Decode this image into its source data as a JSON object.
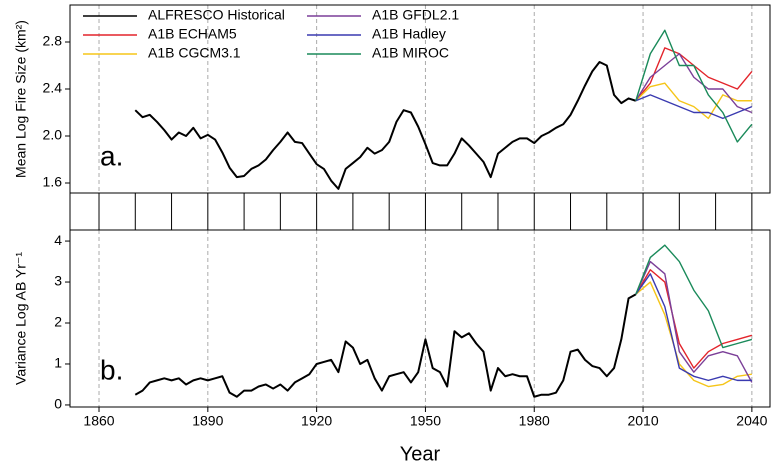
{
  "chart_data": [
    {
      "type": "line",
      "ylabel": "Mean Log Fire Size (km²)",
      "annotation": "a.",
      "xlim": [
        1852,
        2045
      ],
      "ylim": [
        1.515,
        3.115
      ],
      "xticks": [
        1860,
        1890,
        1920,
        1950,
        1980,
        2010,
        2040
      ],
      "xminorticks": [
        1860,
        1870,
        1880,
        1890,
        1900,
        1910,
        1920,
        1930,
        1940,
        1950,
        1960,
        1970,
        1980,
        1990,
        2000,
        2010,
        2020,
        2030,
        2040
      ],
      "yticks": [
        1.6,
        {
          "value": 2,
          "label": "2.0"
        },
        2.4,
        2.8
      ],
      "grid": true,
      "legend": "upper-left",
      "series": [
        {
          "name": "ALFRESCO Historical",
          "color": "#000000",
          "x": [
            1870,
            1872,
            1874,
            1876,
            1878,
            1880,
            1882,
            1884,
            1886,
            1888,
            1890,
            1892,
            1894,
            1896,
            1898,
            1900,
            1902,
            1904,
            1906,
            1908,
            1910,
            1912,
            1914,
            1916,
            1918,
            1920,
            1922,
            1924,
            1926,
            1928,
            1930,
            1932,
            1934,
            1936,
            1938,
            1940,
            1942,
            1944,
            1946,
            1948,
            1950,
            1952,
            1954,
            1956,
            1958,
            1960,
            1962,
            1964,
            1966,
            1968,
            1970,
            1972,
            1974,
            1976,
            1978,
            1980,
            1982,
            1984,
            1986,
            1988,
            1990,
            1992,
            1994,
            1996,
            1998,
            2000,
            2002,
            2004,
            2006,
            2008
          ],
          "values": [
            2.22,
            2.16,
            2.18,
            2.12,
            2.05,
            1.97,
            2.03,
            2.0,
            2.07,
            1.98,
            2.01,
            1.97,
            1.86,
            1.73,
            1.65,
            1.66,
            1.72,
            1.75,
            1.8,
            1.88,
            1.95,
            2.03,
            1.95,
            1.94,
            1.85,
            1.76,
            1.72,
            1.62,
            1.55,
            1.72,
            1.77,
            1.82,
            1.9,
            1.85,
            1.88,
            1.95,
            2.12,
            2.22,
            2.2,
            2.08,
            1.93,
            1.77,
            1.75,
            1.75,
            1.85,
            1.98,
            1.92,
            1.85,
            1.78,
            1.65,
            1.85,
            1.9,
            1.95,
            1.98,
            1.98,
            1.94,
            2.0,
            2.03,
            2.07,
            2.1,
            2.18,
            2.3,
            2.43,
            2.55,
            2.63,
            2.6,
            2.35,
            2.28,
            2.32,
            2.3
          ]
        },
        {
          "name": "A1B ECHAM5",
          "color": "#e3242b",
          "x": [
            2008,
            2012,
            2016,
            2020,
            2024,
            2028,
            2032,
            2036,
            2040
          ],
          "values": [
            2.3,
            2.45,
            2.75,
            2.7,
            2.6,
            2.5,
            2.45,
            2.4,
            2.55
          ]
        },
        {
          "name": "A1B CGCM3.1",
          "color": "#f5c518",
          "x": [
            2008,
            2012,
            2016,
            2020,
            2024,
            2028,
            2032,
            2036,
            2040
          ],
          "values": [
            2.3,
            2.42,
            2.45,
            2.3,
            2.25,
            2.15,
            2.35,
            2.3,
            2.3
          ]
        },
        {
          "name": "A1B GFDL2.1",
          "color": "#7b3f98",
          "x": [
            2008,
            2012,
            2016,
            2020,
            2024,
            2028,
            2032,
            2036,
            2040
          ],
          "values": [
            2.3,
            2.5,
            2.6,
            2.7,
            2.5,
            2.4,
            2.4,
            2.25,
            2.2
          ]
        },
        {
          "name": "A1B Hadley",
          "color": "#3a3ab0",
          "x": [
            2008,
            2012,
            2016,
            2020,
            2024,
            2028,
            2032,
            2036,
            2040
          ],
          "values": [
            2.3,
            2.35,
            2.3,
            2.25,
            2.2,
            2.2,
            2.15,
            2.2,
            2.25
          ]
        },
        {
          "name": "A1B MIROC",
          "color": "#1a8a5a",
          "x": [
            2008,
            2012,
            2016,
            2020,
            2024,
            2028,
            2032,
            2036,
            2040
          ],
          "values": [
            2.3,
            2.7,
            2.9,
            2.6,
            2.6,
            2.35,
            2.2,
            1.95,
            2.1
          ]
        }
      ]
    },
    {
      "type": "line",
      "ylabel": "Variance Log AB Yr⁻¹",
      "xlabel": "Year",
      "annotation": "b.",
      "xlim": [
        1852,
        2045
      ],
      "ylim": [
        -0.05,
        4.27
      ],
      "xticks": [
        1860,
        1890,
        1920,
        1950,
        1980,
        2010,
        2040
      ],
      "yticks": [
        0,
        1,
        2,
        3,
        4
      ],
      "grid": true,
      "series": [
        {
          "color": "#000000",
          "x": [
            1870,
            1872,
            1874,
            1876,
            1878,
            1880,
            1882,
            1884,
            1886,
            1888,
            1890,
            1892,
            1894,
            1896,
            1898,
            1900,
            1902,
            1904,
            1906,
            1908,
            1910,
            1912,
            1914,
            1916,
            1918,
            1920,
            1922,
            1924,
            1926,
            1928,
            1930,
            1932,
            1934,
            1936,
            1938,
            1940,
            1942,
            1944,
            1946,
            1948,
            1950,
            1952,
            1954,
            1956,
            1958,
            1960,
            1962,
            1964,
            1966,
            1968,
            1970,
            1972,
            1974,
            1976,
            1978,
            1980,
            1982,
            1984,
            1986,
            1988,
            1990,
            1992,
            1994,
            1996,
            1998,
            2000,
            2002,
            2004,
            2006,
            2008
          ],
          "values": [
            0.25,
            0.35,
            0.55,
            0.6,
            0.65,
            0.6,
            0.65,
            0.5,
            0.6,
            0.65,
            0.6,
            0.65,
            0.7,
            0.3,
            0.2,
            0.35,
            0.35,
            0.45,
            0.5,
            0.4,
            0.5,
            0.35,
            0.55,
            0.65,
            0.75,
            1.0,
            1.05,
            1.1,
            0.8,
            1.55,
            1.4,
            1.0,
            1.1,
            0.65,
            0.35,
            0.7,
            0.75,
            0.8,
            0.55,
            0.8,
            1.6,
            0.9,
            0.8,
            0.45,
            1.8,
            1.65,
            1.75,
            1.5,
            1.3,
            0.35,
            0.9,
            0.7,
            0.75,
            0.7,
            0.7,
            0.2,
            0.25,
            0.25,
            0.3,
            0.6,
            1.3,
            1.35,
            1.1,
            0.95,
            0.9,
            0.7,
            0.9,
            1.6,
            2.6,
            2.7
          ]
        },
        {
          "color": "#e3242b",
          "x": [
            2008,
            2012,
            2016,
            2020,
            2024,
            2028,
            2032,
            2036,
            2040
          ],
          "values": [
            2.7,
            3.3,
            3.0,
            1.5,
            0.9,
            1.3,
            1.5,
            1.6,
            1.7
          ]
        },
        {
          "color": "#f5c518",
          "x": [
            2008,
            2012,
            2016,
            2020,
            2024,
            2028,
            2032,
            2036,
            2040
          ],
          "values": [
            2.7,
            3.0,
            2.2,
            1.0,
            0.6,
            0.45,
            0.5,
            0.7,
            0.75
          ]
        },
        {
          "color": "#7b3f98",
          "x": [
            2008,
            2012,
            2016,
            2020,
            2024,
            2028,
            2032,
            2036,
            2040
          ],
          "values": [
            2.7,
            3.5,
            3.2,
            1.3,
            0.8,
            1.2,
            1.3,
            1.2,
            0.55
          ]
        },
        {
          "color": "#3a3ab0",
          "x": [
            2008,
            2012,
            2016,
            2020,
            2024,
            2028,
            2032,
            2036,
            2040
          ],
          "values": [
            2.7,
            3.2,
            2.4,
            0.9,
            0.7,
            0.6,
            0.7,
            0.6,
            0.6
          ]
        },
        {
          "color": "#1a8a5a",
          "x": [
            2008,
            2012,
            2016,
            2020,
            2024,
            2028,
            2032,
            2036,
            2040
          ],
          "values": [
            2.7,
            3.6,
            3.9,
            3.5,
            2.8,
            2.3,
            1.4,
            1.5,
            1.6
          ]
        }
      ]
    }
  ]
}
